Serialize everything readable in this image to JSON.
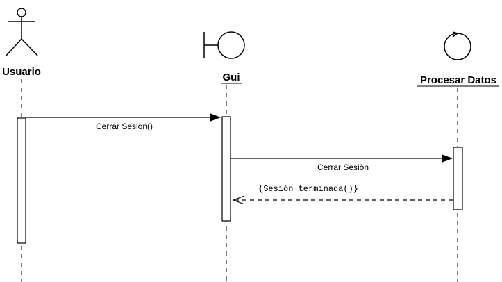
{
  "participants": {
    "actor": {
      "label": "Usuario",
      "kind": "actor-icon"
    },
    "boundary": {
      "label": "Gui",
      "kind": "boundary-icon"
    },
    "control": {
      "label": "Procesar Datos",
      "kind": "control-icon"
    }
  },
  "messages": {
    "m1": {
      "label": "Cerrar Sesiòn()",
      "style": "synchronous"
    },
    "m2": {
      "label": "Cerrar Sesiòn",
      "style": "synchronous"
    },
    "m3": {
      "label": "{Sesiòn terminada()}",
      "style": "return-dashed"
    }
  }
}
